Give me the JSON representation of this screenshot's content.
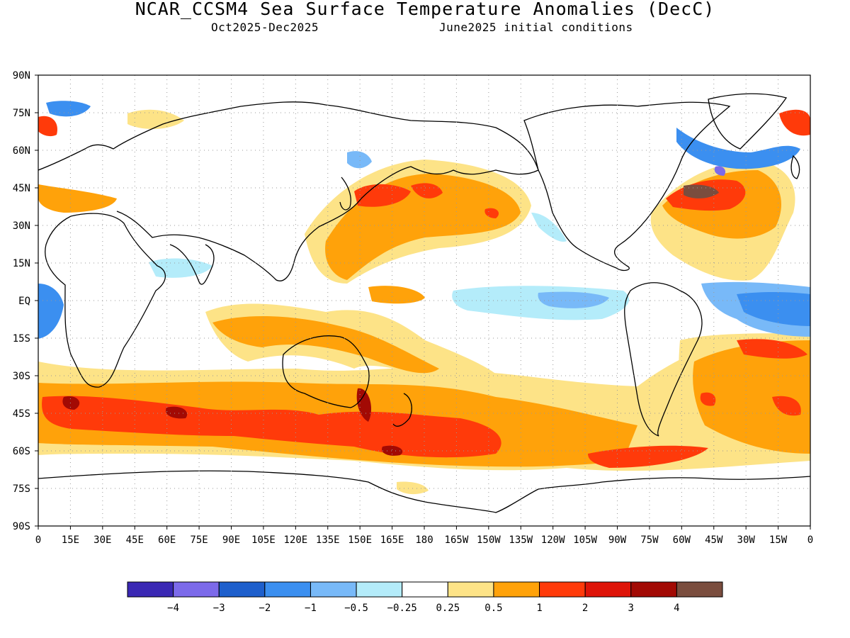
{
  "title": "NCAR_CCSM4 Sea Surface Temperature Anomalies (DecC)",
  "subtitle_left": "Oct2025-Dec2025",
  "subtitle_right": "June2025 initial conditions",
  "lat_labels": [
    "90N",
    "75N",
    "60N",
    "45N",
    "30N",
    "15N",
    "EQ",
    "15S",
    "30S",
    "45S",
    "60S",
    "75S",
    "90S"
  ],
  "lon_labels": [
    "0",
    "15E",
    "30E",
    "45E",
    "60E",
    "75E",
    "90E",
    "105E",
    "120E",
    "135E",
    "150E",
    "165E",
    "180",
    "165W",
    "150W",
    "135W",
    "120W",
    "105W",
    "90W",
    "75W",
    "60W",
    "45W",
    "30W",
    "15W",
    "0"
  ],
  "colorbar": {
    "colors": [
      "#3a28b4",
      "#7c6aea",
      "#1e5fcc",
      "#3b8ff0",
      "#78b9f8",
      "#b4ecfa",
      "#ffffff",
      "#fde387",
      "#ffa20a",
      "#ff3a0a",
      "#de1408",
      "#a20a04",
      "#7a4d3e"
    ],
    "labels": [
      "-4",
      "-3",
      "-2",
      "-1",
      "-0.5",
      "-0.25",
      "0.25",
      "0.5",
      "1",
      "2",
      "3",
      "4"
    ]
  }
}
